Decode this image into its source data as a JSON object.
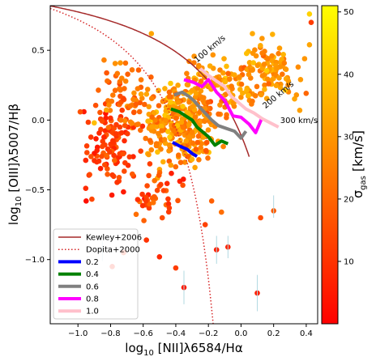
{
  "chart_data": {
    "type": "scatter",
    "title": "",
    "xlabel": "log₁₀ [NII]λ6584/Hα",
    "ylabel": "log₁₀ [OIII]λ5007/Hβ",
    "xlim": [
      -1.17,
      0.47
    ],
    "ylim": [
      -1.46,
      0.82
    ],
    "xticks": [
      -1.0,
      -0.8,
      -0.6,
      -0.4,
      -0.2,
      0.0,
      0.2,
      0.4
    ],
    "xtick_labels": [
      "−1.0",
      "−0.8",
      "−0.6",
      "−0.4",
      "−0.2",
      "0.0",
      "0.2",
      "0.4"
    ],
    "yticks": [
      -1.0,
      -0.5,
      0.0,
      0.5
    ],
    "ytick_labels": [
      "−1.0",
      "−0.5",
      "0.0",
      "0.5"
    ],
    "grid": false,
    "legend_position": "bottom-left",
    "colorbar": {
      "label": "σ_gas [km/s]",
      "min": 0,
      "max": 51,
      "ticks": [
        10,
        20,
        30,
        40,
        50
      ],
      "tick_labels": [
        "10",
        "20",
        "30",
        "40",
        "50"
      ],
      "colormap": "autumn",
      "color_low": "#ff0000",
      "color_high": "#ffff00"
    },
    "curves": [
      {
        "name": "Kewley+2006",
        "style": "solid",
        "color": "#a52a2a",
        "formula": "0.61/(x-0.47)+1.19"
      },
      {
        "name": "Dopita+2000",
        "style": "dotted",
        "color": "#d62728",
        "formula": "0.61/(x-0.05)+1.3"
      }
    ],
    "series": [
      {
        "name": "0.2",
        "color": "#0000ff",
        "x": [
          -0.42,
          -0.37,
          -0.33,
          -0.3,
          -0.27
        ],
        "y": [
          -0.16,
          -0.19,
          -0.21,
          -0.24,
          -0.26
        ]
      },
      {
        "name": "0.4",
        "color": "#008000",
        "x": [
          -0.43,
          -0.38,
          -0.34,
          -0.3,
          -0.27,
          -0.24,
          -0.2,
          -0.16,
          -0.12,
          -0.08
        ],
        "y": [
          0.08,
          0.06,
          0.03,
          0.0,
          -0.05,
          -0.08,
          -0.12,
          -0.18,
          -0.15,
          -0.17
        ]
      },
      {
        "name": "0.6",
        "color": "#808080",
        "x": [
          -0.41,
          -0.36,
          -0.32,
          -0.29,
          -0.26,
          -0.22,
          -0.18,
          -0.14,
          -0.09,
          -0.04,
          0.0,
          0.03
        ],
        "y": [
          0.18,
          0.2,
          0.17,
          0.14,
          0.1,
          0.05,
          0.0,
          -0.04,
          -0.06,
          -0.08,
          -0.13,
          -0.08
        ]
      },
      {
        "name": "0.8",
        "color": "#ff00ff",
        "x": [
          -0.35,
          -0.29,
          -0.24,
          -0.2,
          -0.15,
          -0.1,
          -0.05,
          0.0,
          0.05,
          0.09,
          0.13
        ],
        "y": [
          0.29,
          0.27,
          0.24,
          0.29,
          0.2,
          0.14,
          0.03,
          0.02,
          -0.03,
          -0.09,
          0.02
        ]
      },
      {
        "name": "1.0",
        "color": "#ffc0cb",
        "x": [
          -0.25,
          -0.2,
          -0.15,
          -0.1,
          -0.06,
          -0.02,
          0.03,
          0.08,
          0.13,
          0.18,
          0.23
        ],
        "y": [
          0.37,
          0.32,
          0.28,
          0.24,
          0.17,
          0.13,
          0.08,
          0.05,
          0.01,
          -0.02,
          -0.05
        ]
      }
    ],
    "legend": [
      "Kewley+2006",
      "Dopita+2000",
      "0.2",
      "0.4",
      "0.6",
      "0.8",
      "1.0"
    ],
    "annotations": [
      {
        "text": "100 km/s",
        "x": -0.27,
        "y": 0.41,
        "rotation": -40
      },
      {
        "text": "200 km/s",
        "x": 0.15,
        "y": 0.08,
        "rotation": -40
      },
      {
        "text": "300 km/s",
        "x": 0.24,
        "y": -0.02,
        "rotation": 0
      }
    ],
    "scatter_count": 720,
    "outliers": [
      {
        "x": 0.42,
        "y": 0.76,
        "c": 42
      },
      {
        "x": 0.43,
        "y": 0.7,
        "c": 12
      },
      {
        "x": 0.42,
        "y": 0.54,
        "c": 33
      },
      {
        "x": 0.39,
        "y": 0.44,
        "c": 30
      },
      {
        "x": 0.35,
        "y": 0.38,
        "c": 28
      },
      {
        "x": 0.13,
        "y": 0.48,
        "c": 25
      },
      {
        "x": 0.07,
        "y": 0.62,
        "c": 34
      },
      {
        "x": 0.26,
        "y": 0.47,
        "c": 36
      },
      {
        "x": 0.29,
        "y": 0.28,
        "c": 31
      },
      {
        "x": 0.22,
        "y": 0.37,
        "c": 30
      },
      {
        "x": 0.34,
        "y": 0.18,
        "c": 30
      },
      {
        "x": 0.36,
        "y": 0.07,
        "c": 32
      },
      {
        "x": 0.17,
        "y": 0.26,
        "c": 20
      },
      {
        "x": -0.95,
        "y": -0.58,
        "c": 3
      },
      {
        "x": -0.9,
        "y": -0.02,
        "c": 38
      },
      {
        "x": -0.82,
        "y": 0.28,
        "c": 22
      },
      {
        "x": -0.84,
        "y": 0.43,
        "c": 26
      },
      {
        "x": -0.55,
        "y": 0.62,
        "c": 33
      },
      {
        "x": -0.74,
        "y": 0.41,
        "c": 30
      },
      {
        "x": -0.72,
        "y": -0.95,
        "c": 8
      },
      {
        "x": -0.79,
        "y": -1.05,
        "c": 6
      },
      {
        "x": -0.58,
        "y": -0.86,
        "c": 10
      },
      {
        "x": -0.5,
        "y": -0.98,
        "c": 8
      },
      {
        "x": -0.4,
        "y": -1.06,
        "c": 12
      },
      {
        "x": -0.35,
        "y": -1.2,
        "c": 5
      },
      {
        "x": -0.15,
        "y": -0.93,
        "c": 6
      },
      {
        "x": -0.08,
        "y": -0.91,
        "c": 7
      },
      {
        "x": 0.1,
        "y": -1.24,
        "c": 6
      },
      {
        "x": -0.22,
        "y": -0.75,
        "c": 13
      },
      {
        "x": -0.44,
        "y": -0.63,
        "c": 12
      },
      {
        "x": -0.18,
        "y": -0.58,
        "c": 19
      },
      {
        "x": -0.12,
        "y": -0.66,
        "c": 22
      },
      {
        "x": 0.2,
        "y": -0.65,
        "c": 18
      },
      {
        "x": 0.12,
        "y": -0.7,
        "c": 15
      }
    ],
    "errorbars": [
      {
        "x": -0.35,
        "y": -1.2,
        "dy": 0.12
      },
      {
        "x": -0.15,
        "y": -0.93,
        "dy": 0.1
      },
      {
        "x": -0.08,
        "y": -0.91,
        "dy": 0.08
      },
      {
        "x": 0.1,
        "y": -1.24,
        "dy": 0.13
      },
      {
        "x": -0.85,
        "y": -0.94,
        "dy": 0.07
      },
      {
        "x": 0.2,
        "y": -0.62,
        "dy": 0.08
      }
    ]
  }
}
